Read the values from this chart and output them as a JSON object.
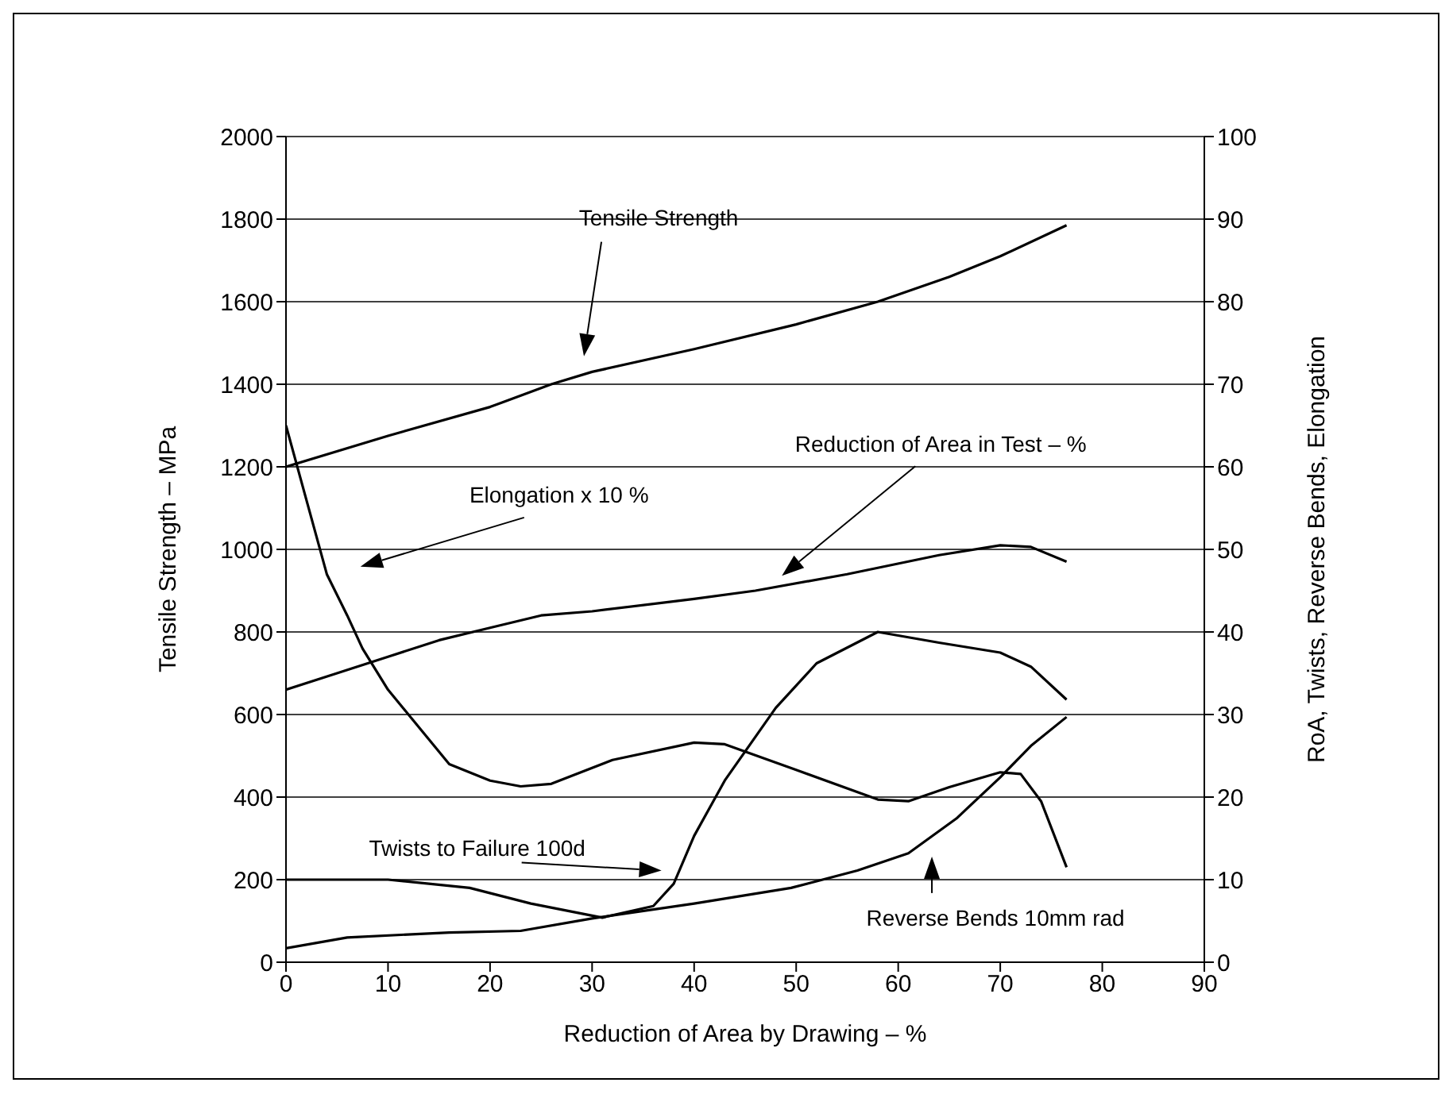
{
  "chart_data": {
    "type": "line",
    "xlabel": "Reduction of Area by Drawing – %",
    "ylabel": "Tensile Strength – MPa",
    "y2label": "RoA,   Twists,   Reverse Bends,  Elongation",
    "xlim": [
      0,
      90
    ],
    "xticks": [
      0,
      10,
      20,
      30,
      40,
      50,
      60,
      70,
      80,
      90
    ],
    "ylim": [
      0,
      2000
    ],
    "yticks": [
      0,
      200,
      400,
      600,
      800,
      1000,
      1200,
      1400,
      1600,
      1800,
      2000
    ],
    "y2lim": [
      0,
      100
    ],
    "y2ticks": [
      0,
      10,
      20,
      30,
      40,
      50,
      60,
      70,
      80,
      90,
      100
    ],
    "grid": "y",
    "legend": false,
    "marker": "none",
    "line_style": "solid",
    "series": [
      {
        "color": "#000000",
        "x": [
          0,
          10,
          20,
          26,
          30,
          40,
          50,
          58,
          65,
          70,
          76.5
        ],
        "values": [
          1200,
          1275,
          1345,
          1400,
          1430,
          1485,
          1545,
          1600,
          1660,
          1710,
          1785
        ]
      },
      {
        "color": "#000000",
        "axis": "y2",
        "x": [
          0,
          5,
          10,
          15,
          20,
          25,
          30,
          40,
          46,
          55,
          64,
          70,
          73,
          76.5
        ],
        "values": [
          33,
          35,
          37,
          39,
          40.5,
          42,
          42.5,
          44,
          45,
          47,
          49.3,
          50.5,
          50.3,
          48.5
        ]
      },
      {
        "color": "#000000",
        "axis": "y2",
        "x": [
          0,
          2,
          4,
          6,
          7.5,
          10,
          12,
          16,
          20,
          23,
          26,
          32,
          40,
          43,
          50,
          58,
          61,
          65,
          70,
          72,
          74,
          76.5
        ],
        "values": [
          65,
          56,
          47,
          42,
          38,
          33,
          30,
          24,
          22,
          21.3,
          21.6,
          24.5,
          26.6,
          26.4,
          23.3,
          19.7,
          19.5,
          21.2,
          23,
          22.8,
          19.5,
          11.5
        ]
      },
      {
        "color": "#000000",
        "axis": "y2",
        "x": [
          0,
          10,
          18,
          24,
          31,
          36,
          38,
          40,
          43,
          48,
          52,
          58,
          64,
          70,
          73,
          76.5
        ],
        "values": [
          10,
          10,
          9,
          7.1,
          5.4,
          6.8,
          9.5,
          15.3,
          22,
          30.8,
          36.2,
          40,
          38.7,
          37.5,
          35.8,
          31.8
        ]
      },
      {
        "color": "#000000",
        "axis": "y2",
        "x": [
          0,
          6,
          16,
          23,
          30,
          40,
          49.5,
          56,
          61,
          65.7,
          70,
          73,
          76.5
        ],
        "values": [
          1.7,
          3,
          3.6,
          3.8,
          5.3,
          7.1,
          9,
          11.1,
          13.2,
          17.4,
          22.4,
          26.2,
          29.7
        ]
      }
    ],
    "annotations": [
      "Tensile Strength",
      "Reduction of Area in Test – %",
      "Elongation x 10   %",
      "Twists to Failure  100d",
      "Reverse Bends  10mm rad"
    ]
  }
}
